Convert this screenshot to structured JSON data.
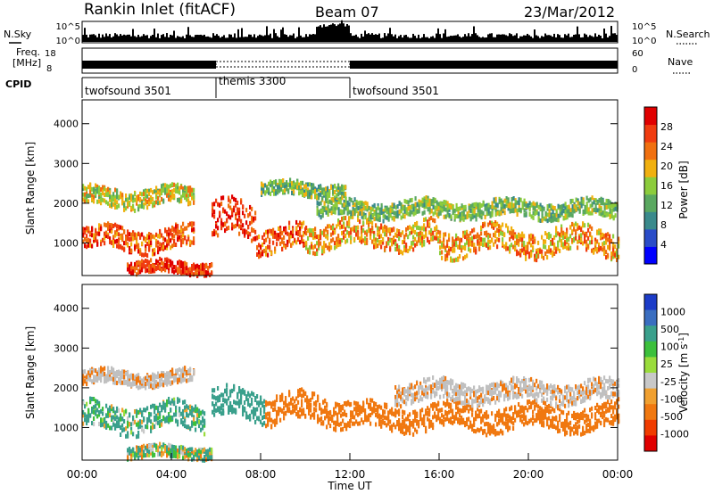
{
  "header": {
    "title": "Rankin Inlet (fitACF)",
    "beam": "Beam 07",
    "date": "23/Mar/2012"
  },
  "strip_labels": {
    "nsky": "N.Sky",
    "freq_line1": "Freq.",
    "freq_line2": "[MHz]",
    "cpid": "CPID",
    "nsearch": "N.Search",
    "nave": "Nave",
    "nsky_ticks": [
      "10^5",
      "10^0"
    ],
    "nsearch_ticks": [
      "10^5",
      "10^0"
    ],
    "freq_ticks": [
      "18",
      "8"
    ],
    "nave_ticks": [
      "60",
      "0"
    ]
  },
  "cpid_segments": [
    {
      "label": "twofsound 3501",
      "start_hr": 0,
      "end_hr": 6
    },
    {
      "label": "themis 3300",
      "start_hr": 6,
      "end_hr": 12
    },
    {
      "label": "twofsound 3501",
      "start_hr": 12,
      "end_hr": 24
    }
  ],
  "colors": {
    "power_scale": [
      "#0000ff",
      "#2a4cc8",
      "#3a8a8c",
      "#5aa860",
      "#8ccc3c",
      "#f0b010",
      "#f07010",
      "#f03c10",
      "#e00000"
    ],
    "velocity_scale": [
      "#1c3cc8",
      "#3a6ec0",
      "#3aa08c",
      "#3cc03c",
      "#9adc3c",
      "#c8c8c8",
      "#f0a030",
      "#f07810",
      "#f03c00",
      "#e00000"
    ],
    "ground_scatter": "#c0c0c0"
  },
  "chart_data": [
    {
      "type": "heatmap",
      "panel": "power",
      "xlabel": "",
      "ylabel": "Slant Range [km]",
      "xlim": [
        0,
        24
      ],
      "ylim": [
        180,
        4600
      ],
      "yticks": [
        1000,
        2000,
        3000,
        4000
      ],
      "colorbar": {
        "label": "Power [dB]",
        "ticks": [
          4,
          8,
          12,
          16,
          20,
          24,
          28
        ],
        "range": [
          0,
          32
        ]
      },
      "scatter_bands": [
        {
          "t_start": 0.0,
          "t_end": 5.0,
          "range_center_km": 1150,
          "width_km": 550,
          "power_db": 26
        },
        {
          "t_start": 0.0,
          "t_end": 5.0,
          "range_center_km": 2200,
          "width_km": 450,
          "power_db": 18
        },
        {
          "t_start": 2.0,
          "t_end": 5.8,
          "range_center_km": 430,
          "width_km": 300,
          "power_db": 28
        },
        {
          "t_start": 5.8,
          "t_end": 7.8,
          "range_center_km": 1550,
          "width_km": 900,
          "power_db": 28
        },
        {
          "t_start": 7.8,
          "t_end": 10.0,
          "range_center_km": 1150,
          "width_km": 600,
          "power_db": 26
        },
        {
          "t_start": 8.0,
          "t_end": 11.8,
          "range_center_km": 2400,
          "width_km": 350,
          "power_db": 14
        },
        {
          "t_start": 10.0,
          "t_end": 16.0,
          "range_center_km": 1250,
          "width_km": 650,
          "power_db": 22
        },
        {
          "t_start": 10.5,
          "t_end": 24.0,
          "range_center_km": 1900,
          "width_km": 400,
          "power_db": 14
        },
        {
          "t_start": 16.0,
          "t_end": 24.0,
          "range_center_km": 1100,
          "width_km": 650,
          "power_db": 22
        }
      ]
    },
    {
      "type": "heatmap",
      "panel": "velocity",
      "xlabel": "Time UT",
      "ylabel": "Slant Range [km]",
      "xlim": [
        0,
        24
      ],
      "ylim": [
        180,
        4600
      ],
      "xticks": [
        "00:00",
        "04:00",
        "08:00",
        "12:00",
        "16:00",
        "20:00",
        "00:00"
      ],
      "yticks": [
        1000,
        2000,
        3000,
        4000
      ],
      "colorbar": {
        "label": "Velocity [m s-1]",
        "ticks": [
          1000,
          500,
          100,
          25,
          -25,
          -100,
          -500,
          -1000
        ]
      },
      "scatter_bands": [
        {
          "t_start": 0.0,
          "t_end": 5.0,
          "range_center_km": 2300,
          "width_km": 350,
          "velocity": 0
        },
        {
          "t_start": 0.0,
          "t_end": 5.5,
          "range_center_km": 1300,
          "width_km": 650,
          "velocity": 150
        },
        {
          "t_start": 2.0,
          "t_end": 5.8,
          "range_center_km": 430,
          "width_km": 280,
          "velocity": 60
        },
        {
          "t_start": 5.8,
          "t_end": 8.2,
          "range_center_km": 1600,
          "width_km": 700,
          "velocity": 300
        },
        {
          "t_start": 8.2,
          "t_end": 12.0,
          "range_center_km": 1500,
          "width_km": 700,
          "velocity": -300
        },
        {
          "t_start": 12.0,
          "t_end": 24.0,
          "range_center_km": 1300,
          "width_km": 600,
          "velocity": -300
        },
        {
          "t_start": 14.0,
          "t_end": 24.0,
          "range_center_km": 1950,
          "width_km": 500,
          "velocity": 0
        }
      ]
    }
  ]
}
